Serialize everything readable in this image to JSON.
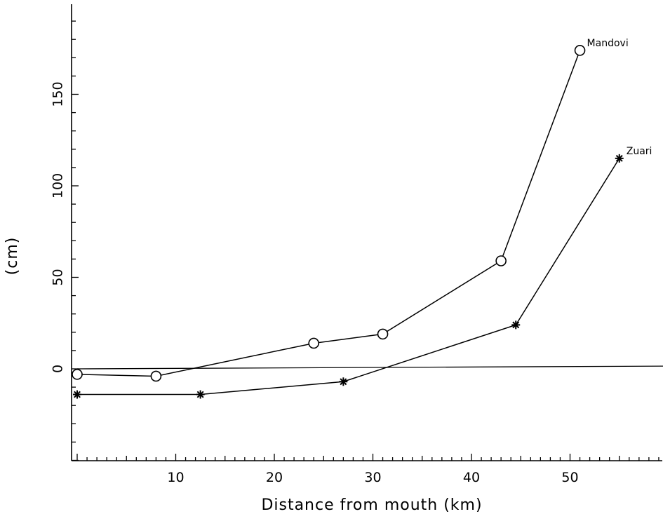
{
  "chart_data": {
    "type": "line",
    "xlabel": "Distance from mouth (km)",
    "ylabel": "(cm)",
    "xlim": [
      -0.5,
      59.5
    ],
    "ylim": [
      -50,
      200
    ],
    "x_ticks": [
      10,
      20,
      30,
      40,
      50
    ],
    "y_ticks": [
      0,
      50,
      100,
      150
    ],
    "reference_line": {
      "from": [
        0,
        0
      ],
      "to": [
        59.5,
        1.5
      ]
    },
    "series": [
      {
        "name": "Mandovi",
        "marker": "circle",
        "x": [
          0,
          8,
          24,
          31,
          43,
          51
        ],
        "y": [
          -3,
          -4,
          14,
          19,
          59,
          174
        ]
      },
      {
        "name": "Zuari",
        "marker": "star",
        "x": [
          0,
          12.5,
          27,
          44.5,
          55
        ],
        "y": [
          -14,
          -14,
          -7,
          24,
          115
        ]
      }
    ]
  }
}
